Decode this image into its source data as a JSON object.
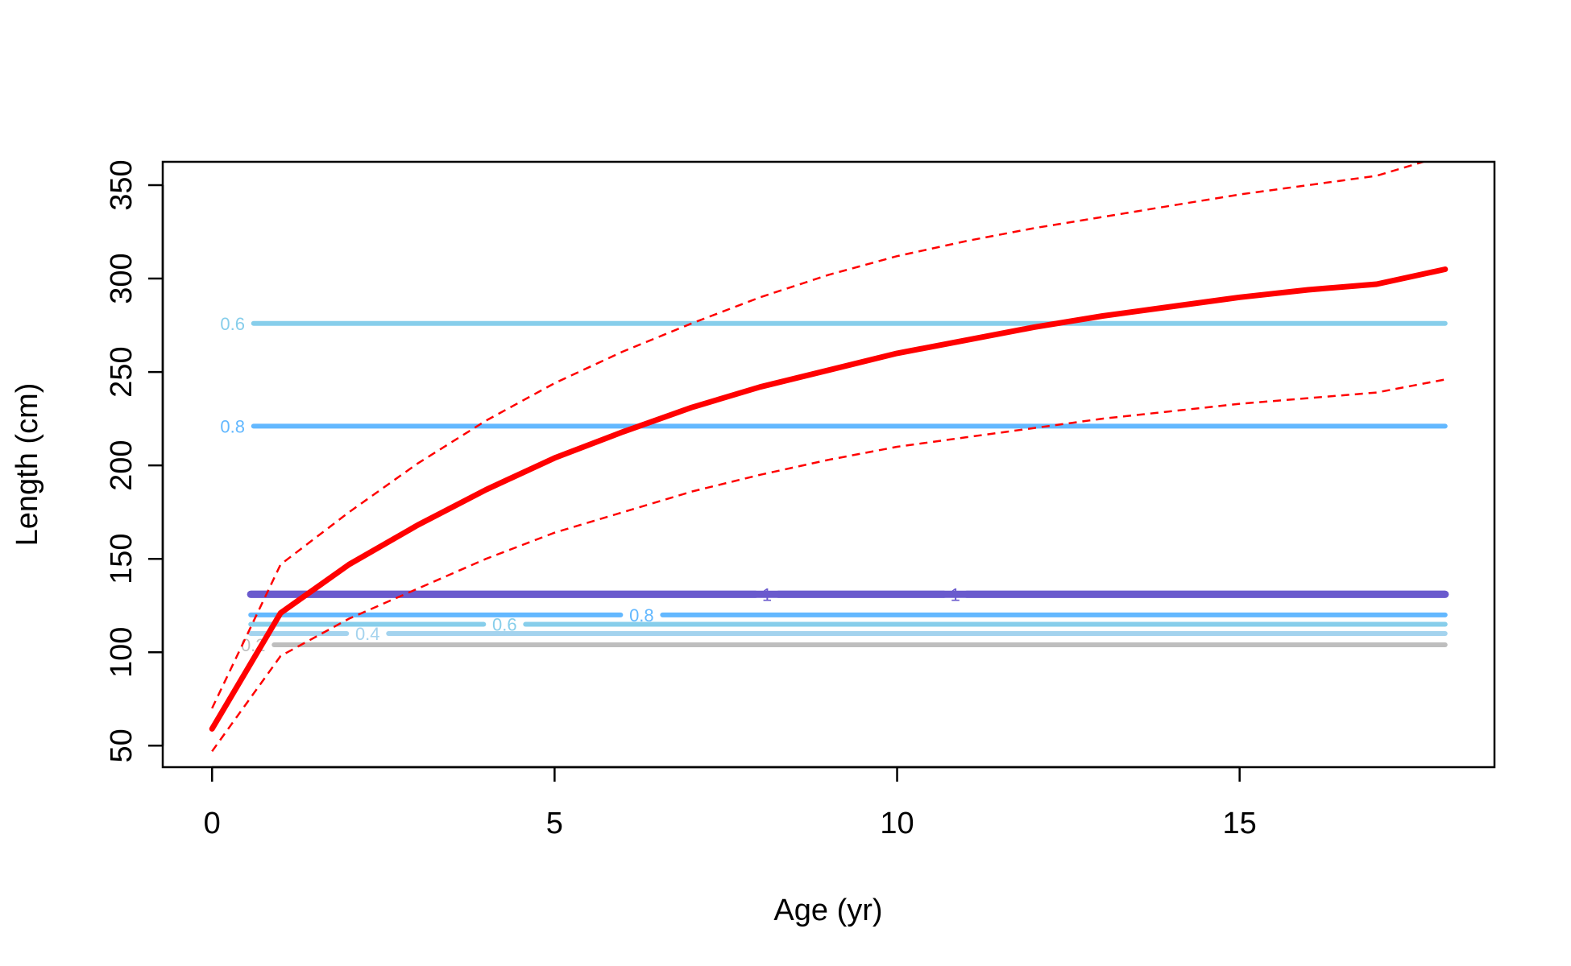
{
  "chart_data": {
    "type": "line",
    "title": "",
    "xlabel": "Age (yr)",
    "ylabel": "Length (cm)",
    "xlim": [
      -0.72,
      18.72
    ],
    "ylim": [
      38.5,
      362.5
    ],
    "xticks": [
      0,
      5,
      10,
      15
    ],
    "yticks": [
      50,
      100,
      150,
      200,
      250,
      300,
      350
    ],
    "xtick_labels": [
      "0",
      "5",
      "10",
      "15"
    ],
    "ytick_labels": [
      "50",
      "100",
      "150",
      "200",
      "250",
      "300",
      "350"
    ],
    "grid": false,
    "legend": "none",
    "series": [
      {
        "role": "mean",
        "color": "#ff0000",
        "style": "solid",
        "x": [
          0,
          1,
          2,
          3,
          4,
          5,
          6,
          7,
          8,
          9,
          10,
          11,
          12,
          13,
          14,
          15,
          16,
          17,
          18
        ],
        "y": [
          59,
          121,
          147,
          168,
          187,
          204,
          218,
          231,
          242,
          251,
          260,
          267,
          274,
          280,
          285,
          290,
          294,
          297,
          305
        ]
      },
      {
        "role": "upper",
        "color": "#ff0000",
        "style": "dashed",
        "x": [
          0,
          1,
          2,
          3,
          4,
          5,
          6,
          7,
          8,
          9,
          10,
          11,
          12,
          13,
          14,
          15,
          16,
          17,
          18
        ],
        "y": [
          70,
          147,
          175,
          201,
          224,
          244,
          261,
          276,
          290,
          302,
          312,
          320,
          327,
          333,
          339,
          345,
          350,
          355,
          366
        ]
      },
      {
        "role": "lower",
        "color": "#ff0000",
        "style": "dashed",
        "x": [
          0,
          1,
          2,
          3,
          4,
          5,
          6,
          7,
          8,
          9,
          10,
          11,
          12,
          13,
          14,
          15,
          16,
          17,
          18
        ],
        "y": [
          47,
          98,
          118,
          134,
          150,
          164,
          175,
          186,
          195,
          203,
          210,
          215,
          220,
          225,
          229,
          233,
          236,
          239,
          246
        ]
      }
    ],
    "contours": [
      {
        "value": 0.2,
        "label": "0.2",
        "y": 104,
        "color": "#bebebe",
        "width": 6,
        "label_x": 0.6
      },
      {
        "value": 0.4,
        "label": "0.4",
        "y": 110,
        "color": "#a4d3ee",
        "width": 6,
        "label_x": 2.27
      },
      {
        "value": 0.6,
        "label": "0.6",
        "y": 115,
        "color": "#87ceeb",
        "width": 6,
        "label_x": 4.27
      },
      {
        "value": 0.8,
        "label": "0.8",
        "y": 120,
        "color": "#63b8ff",
        "width": 6,
        "label_x": 6.27
      },
      {
        "value": 1,
        "label": "1",
        "y": 131,
        "color": "#6a5acd",
        "width": 9,
        "label_x": 8.1
      },
      {
        "value": 1,
        "label": "1",
        "y": 131,
        "color": "#6a5acd",
        "width": 9,
        "label_x": 10.85
      },
      {
        "value": 0.8,
        "label": "0.8",
        "y": 221,
        "color": "#63b8ff",
        "width": 6,
        "label_x": 0.3
      },
      {
        "value": 0.6,
        "label": "0.6",
        "y": 276,
        "color": "#87ceeb",
        "width": 6,
        "label_x": 0.3
      }
    ]
  }
}
